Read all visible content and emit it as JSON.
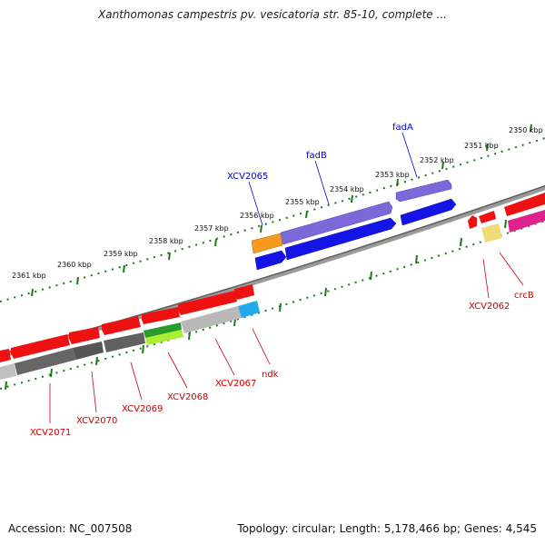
{
  "title": "Xanthomonas campestris pv. vesicatoria str. 85-10, complete ...",
  "footer": {
    "accession": "Accession: NC_007508",
    "topology": "Topology: circular; Length: 5,178,466 bp; Genes: 4,545"
  },
  "colors": {
    "backbone": "#7a7a7a",
    "ticks": "#1a7a1a",
    "label_top": "#0000cc",
    "label_bottom": "#cc0000"
  },
  "scale": {
    "ticks": [
      {
        "label": "2361 kbp",
        "kbp": 2361
      },
      {
        "label": "2360 kbp",
        "kbp": 2360
      },
      {
        "label": "2359 kbp",
        "kbp": 2359
      },
      {
        "label": "2358 kbp",
        "kbp": 2358
      },
      {
        "label": "2357 kbp",
        "kbp": 2357
      },
      {
        "label": "2356 kbp",
        "kbp": 2356
      },
      {
        "label": "2355 kbp",
        "kbp": 2355
      },
      {
        "label": "2354 kbp",
        "kbp": 2354
      },
      {
        "label": "2353 kbp",
        "kbp": 2353
      },
      {
        "label": "2352 kbp",
        "kbp": 2352
      },
      {
        "label": "2351 kbp",
        "kbp": 2351
      },
      {
        "label": "2350 kbp",
        "kbp": 2350
      }
    ]
  },
  "labels_top": [
    {
      "name": "XCV2065"
    },
    {
      "name": "fadB"
    },
    {
      "name": "fadA"
    }
  ],
  "labels_bottom": [
    {
      "name": "XCV2071"
    },
    {
      "name": "XCV2070"
    },
    {
      "name": "XCV2069"
    },
    {
      "name": "XCV2068"
    },
    {
      "name": "XCV2067"
    },
    {
      "name": "ndk"
    },
    {
      "name": "XCV2062"
    },
    {
      "name": "crcB"
    }
  ]
}
